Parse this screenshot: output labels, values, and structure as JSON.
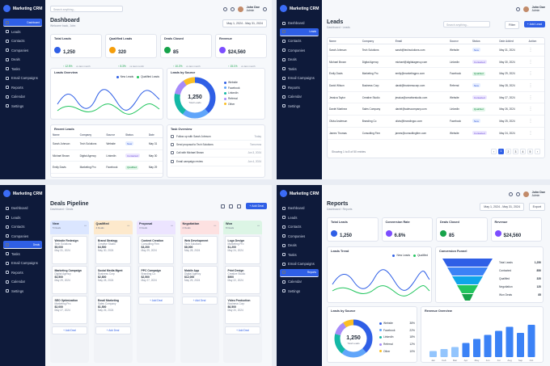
{
  "brand": "Marketing CRM",
  "nav": [
    "Dashboard",
    "Leads",
    "Contacts",
    "Companies",
    "Deals",
    "Tasks",
    "Email Campaigns",
    "Reports",
    "Calendar",
    "Settings"
  ],
  "user": {
    "name": "John Doe",
    "role": "Admin"
  },
  "search_placeholder": "Search anything...",
  "colors": {
    "sidebar": "#0e1a3a",
    "accent": "#2f5fe6",
    "green": "#16a34a",
    "orange": "#f59e0b",
    "purple": "#7c4dff"
  },
  "dashboard": {
    "title": "Dashboard",
    "subtitle": "Welcome back, John",
    "date_range": "May 1, 2024 - May 31, 2024",
    "kpis": [
      {
        "label": "Total Leads",
        "value": "1,250",
        "delta": "↑ 12.5%",
        "note": "vs last month",
        "color": "#2f5fe6"
      },
      {
        "label": "Qualified Leads",
        "value": "320",
        "delta": "↑ 8.3%",
        "note": "vs last month",
        "color": "#f59e0b"
      },
      {
        "label": "Deals Closed",
        "value": "85",
        "delta": "↑ 10.2%",
        "note": "vs last month",
        "color": "#16a34a"
      },
      {
        "label": "Revenue",
        "value": "$24,560",
        "delta": "↑ 15.1%",
        "note": "vs last month",
        "color": "#7c4dff"
      }
    ],
    "leads_overview": {
      "title": "Leads Overview",
      "legend": [
        "New Leads",
        "Qualified Leads"
      ]
    },
    "leads_by_source": {
      "title": "Leads by Source",
      "total": "1,250",
      "total_label": "Total Leads",
      "sources": [
        "Website",
        "Facebook",
        "LinkedIn",
        "Referral",
        "Other"
      ]
    },
    "recent_leads": {
      "title": "Recent Leads",
      "columns": [
        "Name",
        "Company",
        "Source",
        "Status",
        "Date"
      ],
      "rows": [
        [
          "Sarah Johnson",
          "Tech Solutions",
          "Website",
          "New",
          "May 31"
        ],
        [
          "Michael Brown",
          "Digital Agency",
          "LinkedIn",
          "Contacted",
          "May 30"
        ],
        [
          "Emily Davis",
          "Marketing Pro",
          "Facebook",
          "Qualified",
          "May 29"
        ]
      ]
    },
    "task_overview": {
      "title": "Task Overview",
      "tasks": [
        [
          "Follow up with Sarah Johnson",
          "Today"
        ],
        [
          "Send proposal to Tech Solutions",
          "Tomorrow"
        ],
        [
          "Call with Michael Brown",
          "Jun 3, 2024"
        ],
        [
          "Email campaign review",
          "Jun 4, 2024"
        ]
      ]
    }
  },
  "leads": {
    "title": "Leads",
    "breadcrumb": "Dashboard  ›  Leads",
    "filter": "Filter",
    "add": "+ Add Lead",
    "columns": [
      "Name",
      "Company",
      "Email",
      "Source",
      "Status",
      "Date Added",
      "Action"
    ],
    "rows": [
      [
        "Sarah Johnson",
        "Tech Solutions",
        "sarah@techsolutions.com",
        "Website",
        "New",
        "May 31, 2024"
      ],
      [
        "Michael Brown",
        "Digital Agency",
        "michael@digitalagency.com",
        "LinkedIn",
        "Contacted",
        "May 30, 2024"
      ],
      [
        "Emily Davis",
        "Marketing Pro",
        "emily@marketingpro.com",
        "Facebook",
        "Qualified",
        "May 29, 2024"
      ],
      [
        "David Wilson",
        "Business Corp",
        "david@businesscorp.com",
        "Referral",
        "New",
        "May 28, 2024"
      ],
      [
        "Jessica Taylor",
        "Creative Studio",
        "jessica@creativestudio.com",
        "Website",
        "Contacted",
        "May 27, 2024"
      ],
      [
        "Daniel Martinez",
        "Sales Company",
        "daniel@salescompany.com",
        "LinkedIn",
        "Qualified",
        "May 26, 2024"
      ],
      [
        "Olivia Anderson",
        "Branding Co",
        "olivia@brandingco.com",
        "Facebook",
        "New",
        "May 25, 2024"
      ],
      [
        "James Thomas",
        "Consulting Firm",
        "james@consultingfirm.com",
        "Website",
        "Contacted",
        "May 24, 2024"
      ]
    ],
    "showing": "Showing 1 to 8 of 50 entries",
    "pages": [
      "‹",
      "1",
      "2",
      "3",
      "4",
      "5",
      "›"
    ]
  },
  "pipeline": {
    "title": "Deals Pipeline",
    "breadcrumb": "Dashboard  ›  Deals",
    "add": "+ Add Deal",
    "add_card": "+ Add Deal",
    "stages": [
      {
        "name": "New",
        "count": "5 Deals",
        "color": "#dbe6ff",
        "cards": [
          [
            "Website Redesign",
            "Tech Solutions",
            "$5,000",
            "May 31, 2024"
          ],
          [
            "Marketing Campaign",
            "Digital Agency",
            "$3,500",
            "May 29, 2024"
          ],
          [
            "SEO Optimization",
            "Marketing Pro",
            "$2,000",
            "May 27, 2024"
          ]
        ]
      },
      {
        "name": "Qualified",
        "count": "4 Deals",
        "color": "#fde9cc",
        "cards": [
          [
            "Brand Strategy",
            "Creative Studio",
            "$4,500",
            "May 30, 2024"
          ],
          [
            "Social Media Mgmt",
            "Business Corp",
            "$2,800",
            "May 28, 2024"
          ],
          [
            "Email Marketing",
            "Sales Company",
            "$1,500",
            "May 26, 2024"
          ]
        ]
      },
      {
        "name": "Proposal",
        "count": "3 Deals",
        "color": "#ece4ff",
        "cards": [
          [
            "Content Creation",
            "Consulting Firm",
            "$3,200",
            "May 29, 2024"
          ],
          [
            "PPC Campaign",
            "Branding Co",
            "$2,500",
            "May 27, 2024"
          ]
        ]
      },
      {
        "name": "Negotiation",
        "count": "2 Deals",
        "color": "#fde1e1",
        "cards": [
          [
            "Web Development",
            "Tech Solutions",
            "$8,000",
            "May 28, 2024"
          ],
          [
            "Mobile App",
            "Digital Agency",
            "$12,000",
            "May 25, 2024"
          ]
        ]
      },
      {
        "name": "Won",
        "count": "8 Deals",
        "color": "#dcf5e5",
        "cards": [
          [
            "Logo Design",
            "Marketing Pro",
            "$1,200",
            "May 24, 2024"
          ],
          [
            "Print Design",
            "Creative Studio",
            "$900",
            "May 22, 2024"
          ],
          [
            "Video Production",
            "Business Corp",
            "$6,500",
            "May 20, 2024"
          ]
        ]
      }
    ]
  },
  "reports": {
    "title": "Reports",
    "breadcrumb": "Dashboard  ›  Reports",
    "date_range": "May 1, 2024 - May 31, 2024",
    "export": "Export",
    "kpis": [
      {
        "label": "Total Leads",
        "value": "1,250",
        "delta": "↑ 12.5%",
        "color": "#2f5fe6"
      },
      {
        "label": "Conversion Rate",
        "value": "6.8%",
        "delta": "↑ 2.3%",
        "color": "#7c4dff"
      },
      {
        "label": "Deals Closed",
        "value": "85",
        "delta": "↑ 10.2%",
        "color": "#16a34a"
      },
      {
        "label": "Revenue",
        "value": "$24,560",
        "delta": "↑ 15.1%",
        "color": "#7c4dff"
      }
    ],
    "leads_trend": {
      "title": "Leads Trend",
      "legend": [
        "New Leads",
        "Qualified"
      ]
    },
    "funnel": {
      "title": "Conversion Funnel",
      "stages": [
        [
          "Total Leads",
          "1,250"
        ],
        [
          "Contacted",
          "850"
        ],
        [
          "Qualified",
          "320"
        ],
        [
          "Negotiation",
          "120"
        ],
        [
          "Won Deals",
          "85"
        ]
      ]
    },
    "source": {
      "title": "Leads by Source",
      "total": "1,250",
      "total_label": "Total Leads",
      "items": [
        [
          "Website",
          "38%"
        ],
        [
          "Facebook",
          "22%"
        ],
        [
          "LinkedIn",
          "18%"
        ],
        [
          "Referral",
          "12%"
        ],
        [
          "Other",
          "10%"
        ]
      ]
    },
    "revenue": {
      "title": "Revenue Overview",
      "months": [
        "Jan",
        "Feb",
        "Mar",
        "Apr",
        "May",
        "Jun",
        "Jul",
        "Aug",
        "Sep",
        "Oct"
      ],
      "values": [
        3,
        4,
        5,
        7,
        9,
        11,
        13,
        15,
        12,
        16
      ]
    }
  }
}
